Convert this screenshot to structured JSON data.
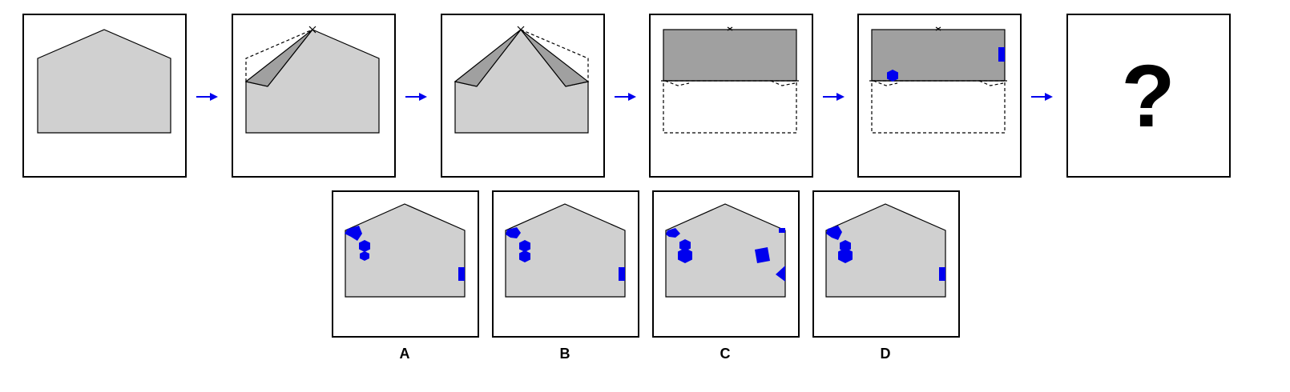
{
  "puzzle": {
    "question_symbol": "?",
    "options": [
      {
        "label": "A"
      },
      {
        "label": "B"
      },
      {
        "label": "C"
      },
      {
        "label": "D"
      }
    ]
  },
  "colors": {
    "paper": "#d0d0d0",
    "folded_flap": "#a0a0a0",
    "marks": "#0000ee",
    "arrows": "#0000ee",
    "frame": "#000000"
  },
  "icons": [
    "right-arrow-icon",
    "hexagon-hole-icon",
    "rectangle-hole-icon",
    "square-hole-icon",
    "triangle-hole-icon"
  ]
}
